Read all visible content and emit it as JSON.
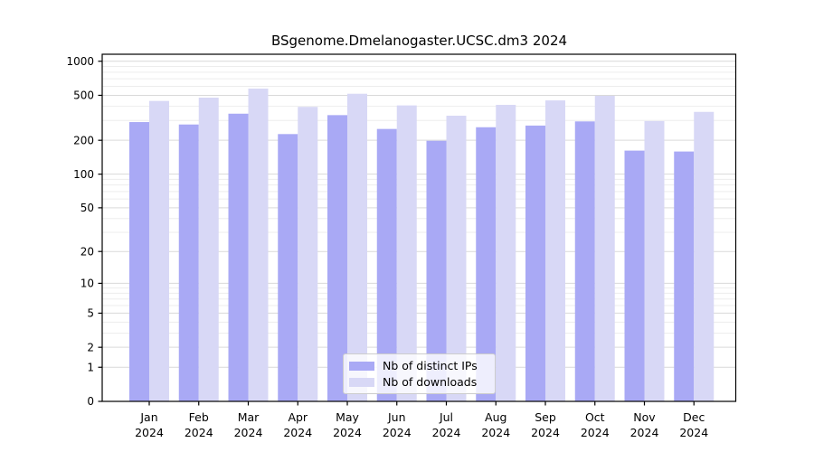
{
  "chart_data": {
    "type": "bar",
    "title": "BSgenome.Dmelanogaster.UCSC.dm3 2024",
    "year_label": "2024",
    "categories": [
      "Jan",
      "Feb",
      "Mar",
      "Apr",
      "May",
      "Jun",
      "Jul",
      "Aug",
      "Sep",
      "Oct",
      "Nov",
      "Dec"
    ],
    "series": [
      {
        "name": "Nb of distinct IPs",
        "color": "#a9a9f5",
        "values": [
          290,
          276,
          344,
          227,
          334,
          252,
          198,
          261,
          270,
          294,
          162,
          159
        ]
      },
      {
        "name": "Nb of downloads",
        "color": "#d8d8f6",
        "values": [
          446,
          477,
          573,
          395,
          516,
          407,
          330,
          412,
          451,
          495,
          296,
          357
        ]
      }
    ],
    "y_axis": {
      "scale": "log10(value+1)",
      "ticks": [
        0,
        1,
        2,
        5,
        10,
        20,
        50,
        100,
        200,
        500,
        1000
      ],
      "minor_gridlines": [
        3,
        4,
        6,
        7,
        8,
        9,
        30,
        40,
        60,
        70,
        80,
        90,
        300,
        400,
        600,
        700,
        800,
        900
      ],
      "range_top": 1000
    },
    "xlabel": "",
    "ylabel": "",
    "grid": true,
    "legend_position": "bottom-center"
  },
  "colors": {
    "background": "#ffffff",
    "frame": "#000000",
    "grid_major": "#d9d9d9",
    "grid_minor": "#ededed",
    "text": "#000000",
    "legend_border": "#cccccc"
  }
}
